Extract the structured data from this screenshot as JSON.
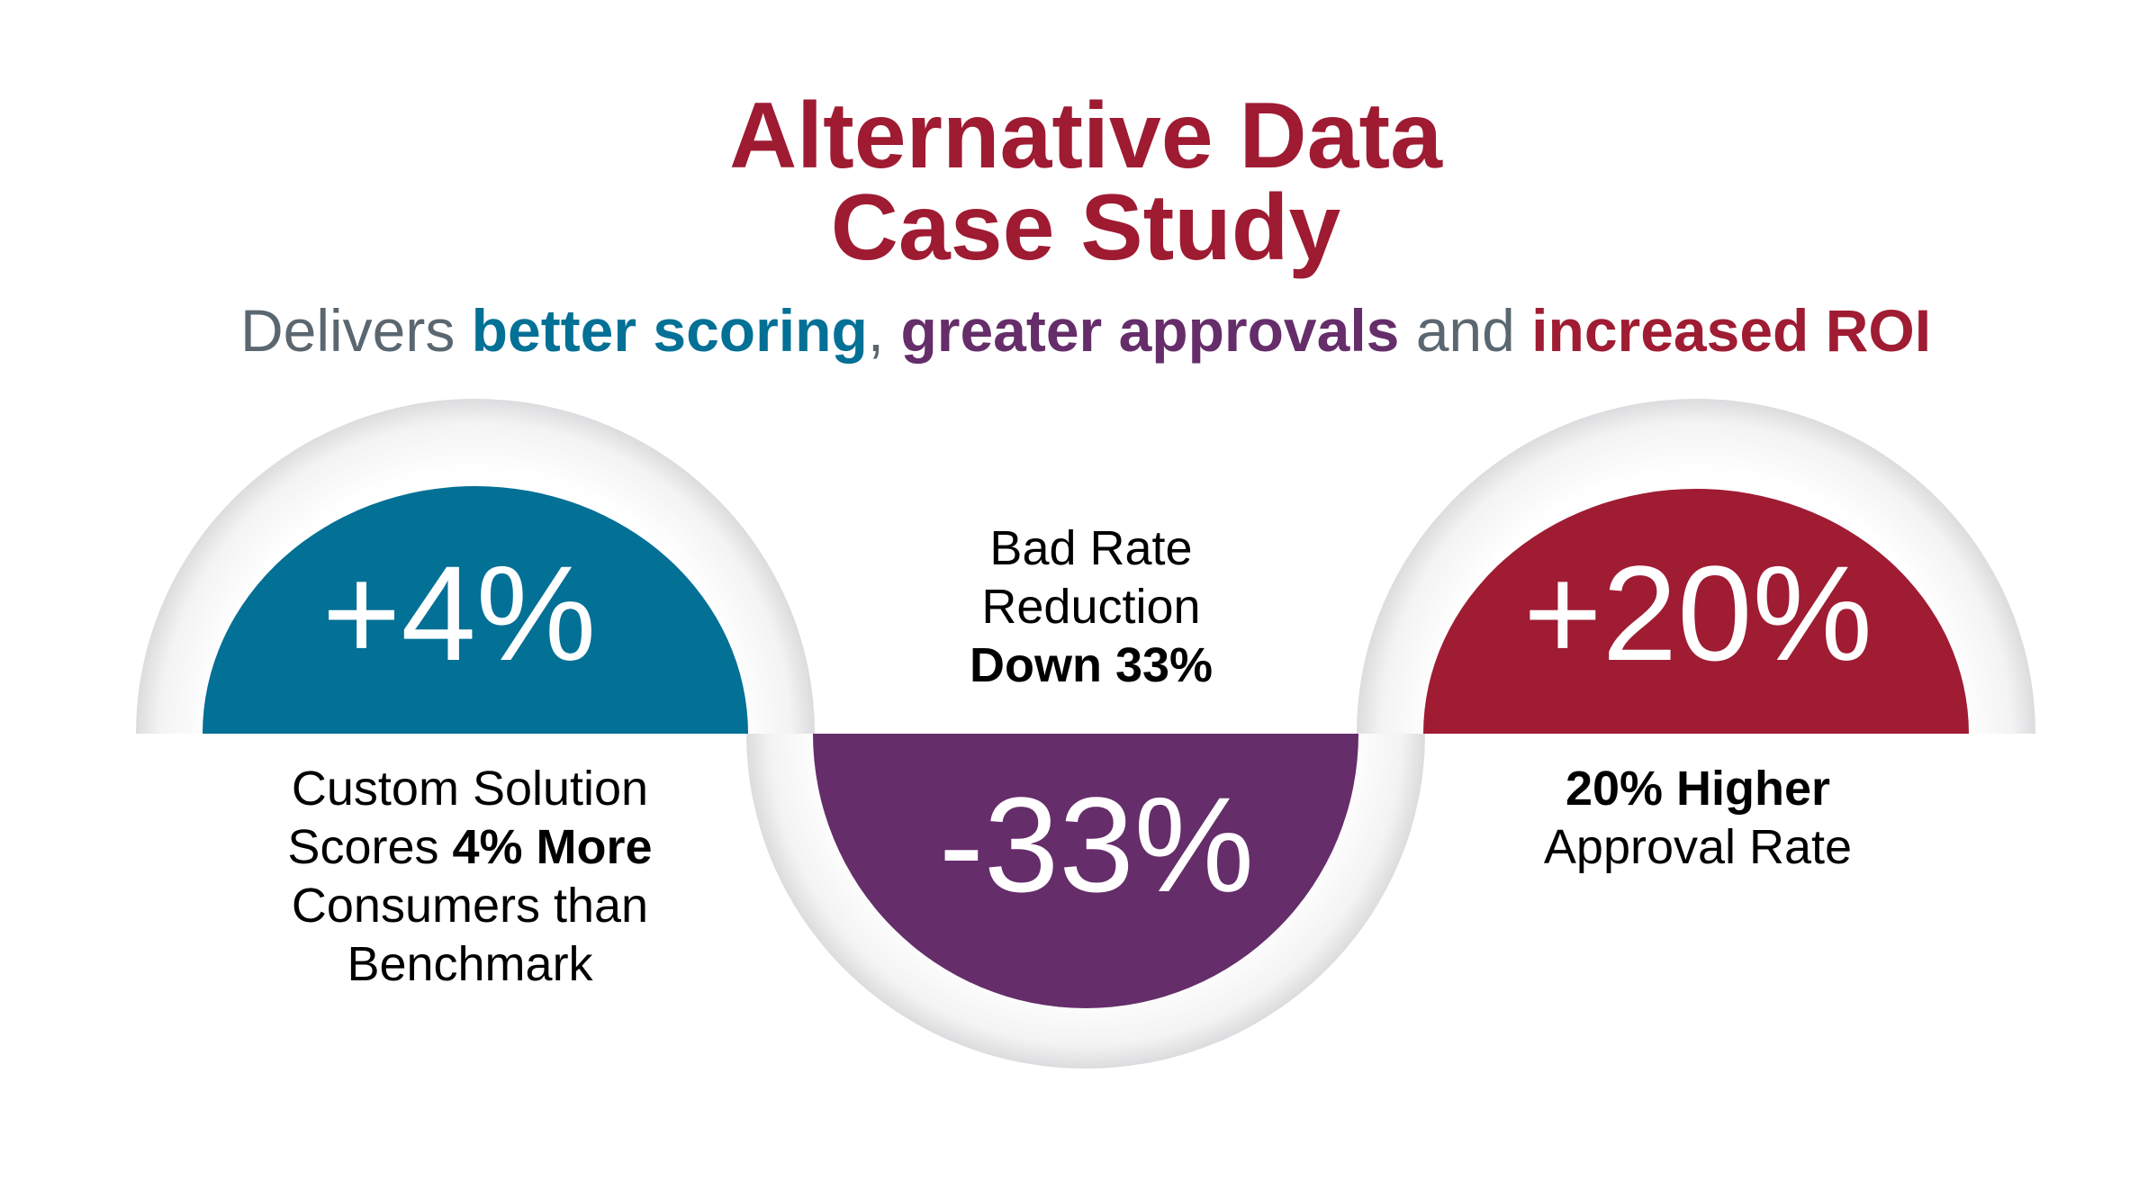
{
  "title": {
    "line1": "Alternative Data",
    "line2": "Case Study"
  },
  "subtitle": {
    "prefix": "Delivers ",
    "part1": "better scoring",
    "sep1": ", ",
    "part2": "greater approvals",
    "sep2": " and ",
    "part3": "increased ROI"
  },
  "colors": {
    "title": "#9e1b32",
    "blue": "#037096",
    "purple": "#652d69",
    "red": "#9f1c33",
    "subtitle_gray": "#5b6770"
  },
  "metrics": [
    {
      "value": "+4%",
      "color": "#037096",
      "lines": [
        {
          "text": "Custom Solution"
        },
        {
          "text": "Scores ",
          "bold": "4% More"
        },
        {
          "text": "Consumers than"
        },
        {
          "text": "Benchmark"
        }
      ]
    },
    {
      "value": "-33%",
      "color": "#652d69",
      "lines": [
        {
          "text": "Bad Rate"
        },
        {
          "text": "Reduction"
        },
        {
          "bold": "Down 33%"
        }
      ]
    },
    {
      "value": "+20%",
      "color": "#9f1c33",
      "lines": [
        {
          "bold": "20% Higher"
        },
        {
          "text": "Approval Rate"
        }
      ]
    }
  ]
}
